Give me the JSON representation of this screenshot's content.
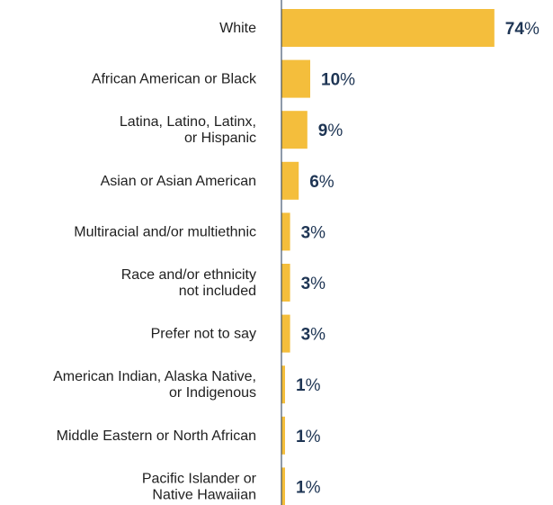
{
  "chart_data": {
    "type": "bar",
    "orientation": "horizontal",
    "categories": [
      [
        "White"
      ],
      [
        "African American or Black"
      ],
      [
        "Latina, Latino, Latinx,",
        "or Hispanic"
      ],
      [
        "Asian or Asian American"
      ],
      [
        "Multiracial and/or multiethnic"
      ],
      [
        "Race and/or ethnicity",
        "not included"
      ],
      [
        "Prefer not to say"
      ],
      [
        "American Indian, Alaska Native,",
        "or Indigenous"
      ],
      [
        "Middle Eastern or North African"
      ],
      [
        "Pacific Islander or",
        "Native Hawaiian"
      ]
    ],
    "values": [
      74,
      10,
      9,
      6,
      3,
      3,
      3,
      1,
      1,
      1
    ],
    "unit": "%",
    "xlim": [
      0,
      100
    ],
    "grid": false,
    "bar_color": "#f4be3c",
    "axis_color": "#1e3554",
    "value_label_color": "#1e3554"
  }
}
